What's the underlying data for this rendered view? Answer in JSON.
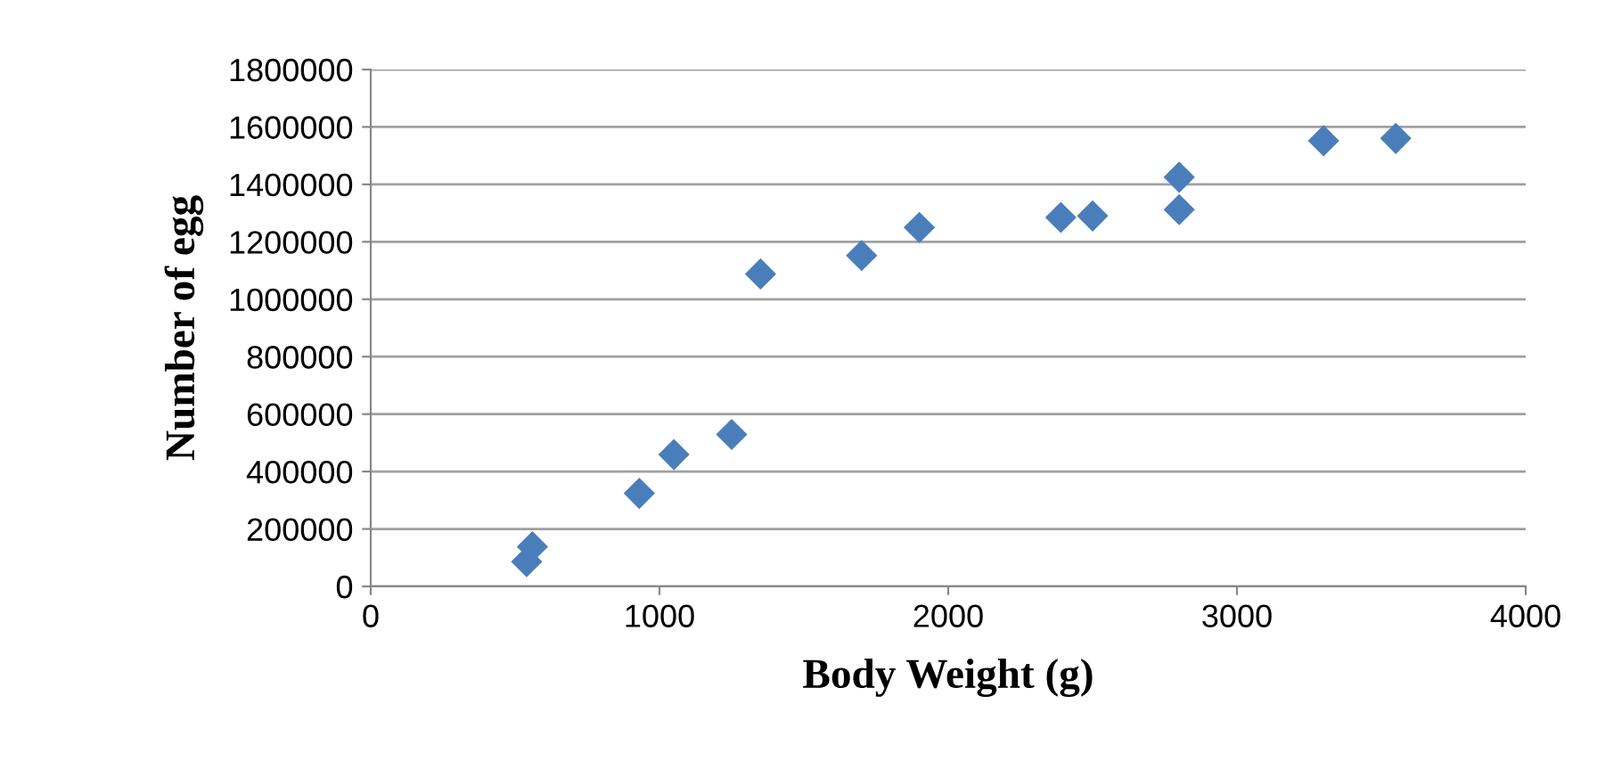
{
  "chart_data": {
    "type": "scatter",
    "xlabel": "Body Weight (g)",
    "ylabel": "Number of egg",
    "x": [
      540,
      560,
      930,
      1050,
      1250,
      1350,
      1700,
      1900,
      2390,
      2500,
      2800,
      2800,
      3300,
      3550
    ],
    "values": [
      86000,
      138000,
      324000,
      459000,
      529000,
      1088000,
      1152000,
      1250000,
      1285000,
      1290000,
      1312000,
      1425000,
      1552000,
      1560000
    ],
    "color": "#4a7ebb",
    "marker": "diamond",
    "grid": "y",
    "xlim": [
      0,
      4000
    ],
    "xticks": [
      0,
      1000,
      2000,
      3000,
      4000
    ],
    "ylim": [
      0,
      1800000
    ],
    "yticks": [
      0,
      200000,
      400000,
      600000,
      800000,
      1000000,
      1200000,
      1400000,
      1600000,
      1800000
    ]
  }
}
